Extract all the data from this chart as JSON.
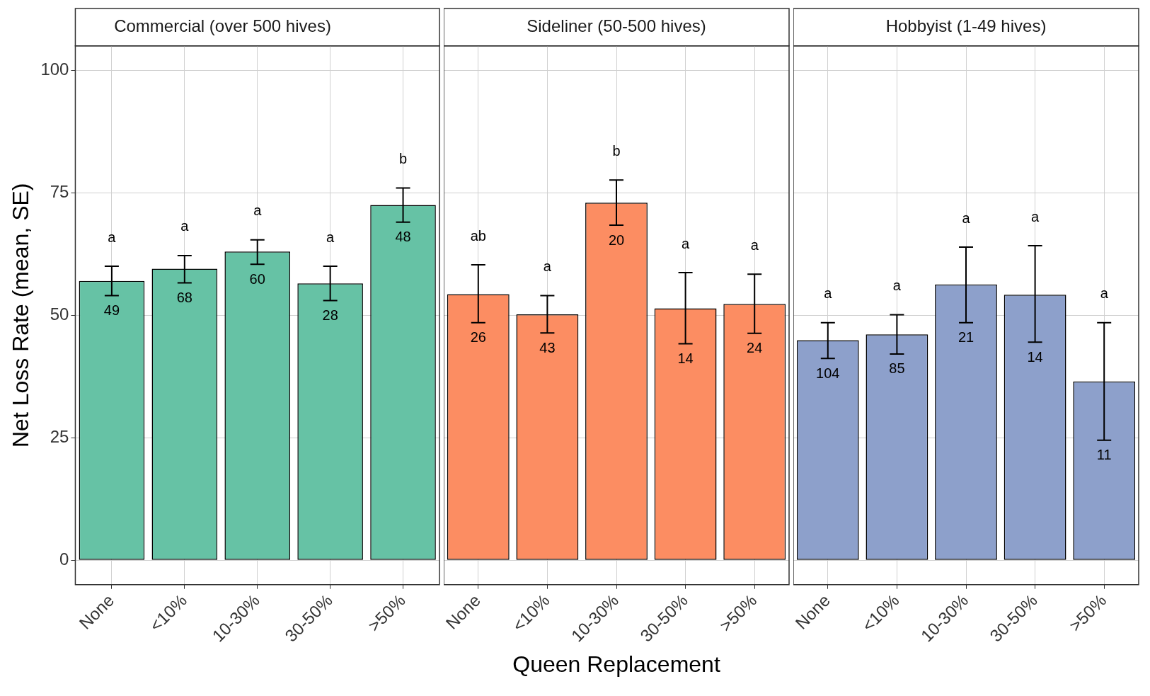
{
  "chart_data": [
    {
      "type": "bar",
      "title": "Commercial (over 500 hives)",
      "ylabel": "Net Loss Rate (mean, SE)",
      "categories": [
        "None",
        "<10%",
        "10-30%",
        "30-50%",
        ">50%"
      ],
      "ylim": [
        -5,
        105
      ],
      "yticks": [
        0,
        25,
        50,
        75,
        100
      ],
      "grid": true,
      "legend": false,
      "series": [
        {
          "color": "#66c2a5",
          "values": [
            57,
            59.5,
            63,
            56.5,
            72.5
          ],
          "errors": [
            [
              54,
              60
            ],
            [
              56.6,
              62.2
            ],
            [
              60.4,
              65.4
            ],
            [
              53,
              60
            ],
            [
              69,
              76
            ]
          ]
        }
      ],
      "annotations": [
        "a",
        "a",
        "a",
        "a",
        "b",
        "49",
        "68",
        "60",
        "28",
        "48"
      ]
    },
    {
      "type": "bar",
      "title": "Sideliner (50-500 hives)",
      "xlabel": "Queen Replacement",
      "categories": [
        "None",
        "<10%",
        "10-30%",
        "30-50%",
        ">50%"
      ],
      "ylim": [
        -5,
        105
      ],
      "yticks": [
        0,
        25,
        50,
        75,
        100
      ],
      "grid": true,
      "legend": false,
      "tick_labels": "x",
      "series": [
        {
          "color": "#fc8d62",
          "values": [
            54.3,
            50.2,
            73,
            51.4,
            52.3
          ],
          "errors": [
            [
              48.5,
              60.3
            ],
            [
              46.4,
              54
            ],
            [
              68.4,
              77.6
            ],
            [
              44.2,
              58.7
            ],
            [
              46.3,
              58.4
            ]
          ]
        }
      ],
      "annotations": [
        "ab",
        "a",
        "b",
        "a",
        "a",
        "26",
        "43",
        "20",
        "14",
        "24"
      ]
    },
    {
      "type": "bar",
      "title": "Hobbyist (1-49 hives)",
      "categories": [
        "None",
        "<10%",
        "10-30%",
        "30-50%",
        ">50%"
      ],
      "ylim": [
        -5,
        105
      ],
      "yticks": [
        0,
        25,
        50,
        75,
        100
      ],
      "grid": true,
      "legend": false,
      "tick_labels": "x",
      "series": [
        {
          "color": "#8da0cb",
          "values": [
            44.9,
            46.1,
            56.3,
            54.2,
            36.5
          ],
          "errors": [
            [
              41.2,
              48.5
            ],
            [
              42.1,
              50.1
            ],
            [
              48.5,
              63.9
            ],
            [
              44.5,
              64.2
            ],
            [
              24.5,
              48.5
            ]
          ]
        }
      ],
      "annotations": [
        "a",
        "a",
        "a",
        "a",
        "a",
        "104",
        "85",
        "21",
        "14",
        "11"
      ]
    }
  ]
}
